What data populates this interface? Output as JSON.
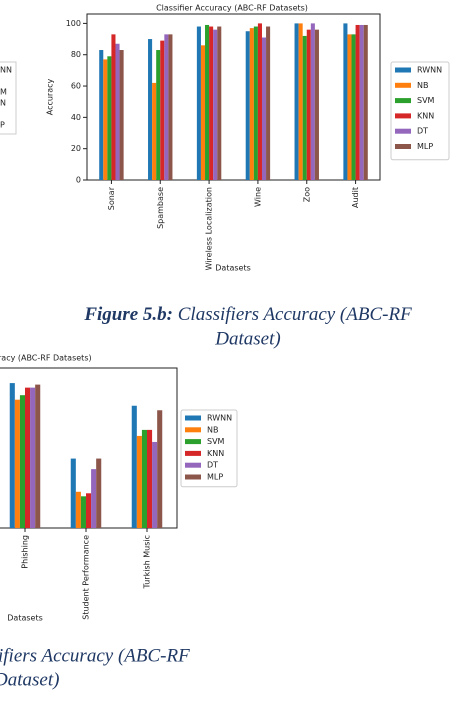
{
  "chart_data": [
    {
      "type": "bar",
      "title": "Classifier Accuracy (ABC-RF Datasets)",
      "x_label": "Datasets",
      "y_label": "Accuracy",
      "categories": [
        "Sonar",
        "Spambase",
        "Wireless Localization",
        "Wine",
        "Zoo",
        "Audit"
      ],
      "ylim": [
        0,
        106
      ],
      "yticks": [
        0,
        20,
        40,
        60,
        80,
        100
      ],
      "series": [
        {
          "name": "RWNN",
          "color": "#1f77b4",
          "values": [
            83,
            90,
            98,
            95,
            100,
            100
          ]
        },
        {
          "name": "NB",
          "color": "#ff7f0e",
          "values": [
            77,
            62,
            86,
            97,
            100,
            93
          ]
        },
        {
          "name": "SVM",
          "color": "#2ca02c",
          "values": [
            79,
            83,
            99,
            98,
            92,
            93
          ]
        },
        {
          "name": "KNN",
          "color": "#d62728",
          "values": [
            93,
            89,
            98,
            100,
            96,
            99
          ]
        },
        {
          "name": "DT",
          "color": "#9467bd",
          "values": [
            87,
            93,
            96,
            91,
            100,
            99
          ]
        },
        {
          "name": "MLP",
          "color": "#8c564b",
          "values": [
            83,
            93,
            98,
            98,
            96,
            99
          ]
        }
      ]
    },
    {
      "type": "bar",
      "title": "racy (ABC-RF Datasets)",
      "x_label": "Datasets",
      "categories": [
        "Phishing",
        "Student Performance",
        "Turkish Music"
      ],
      "ylim": [
        0,
        106
      ],
      "series": [
        {
          "name": "RWNN",
          "color": "#1f77b4",
          "values": [
            96,
            46,
            81
          ]
        },
        {
          "name": "NB",
          "color": "#ff7f0e",
          "values": [
            85,
            24,
            61
          ]
        },
        {
          "name": "SVM",
          "color": "#2ca02c",
          "values": [
            88,
            21,
            65
          ]
        },
        {
          "name": "KNN",
          "color": "#d62728",
          "values": [
            93,
            23,
            65
          ]
        },
        {
          "name": "DT",
          "color": "#9467bd",
          "values": [
            93,
            39,
            57
          ]
        },
        {
          "name": "MLP",
          "color": "#8c564b",
          "values": [
            95,
            46,
            78
          ]
        }
      ]
    }
  ],
  "cropped_legend": [
    "NN",
    "M",
    "N",
    "P"
  ],
  "caption_1": {
    "label": "Figure 5.b:",
    "line1": "Classifiers Accuracy (ABC-RF",
    "line2": "Dataset)"
  },
  "caption_2": {
    "line1": "ifiers Accuracy (ABC-RF",
    "line2": "Dataset)"
  }
}
